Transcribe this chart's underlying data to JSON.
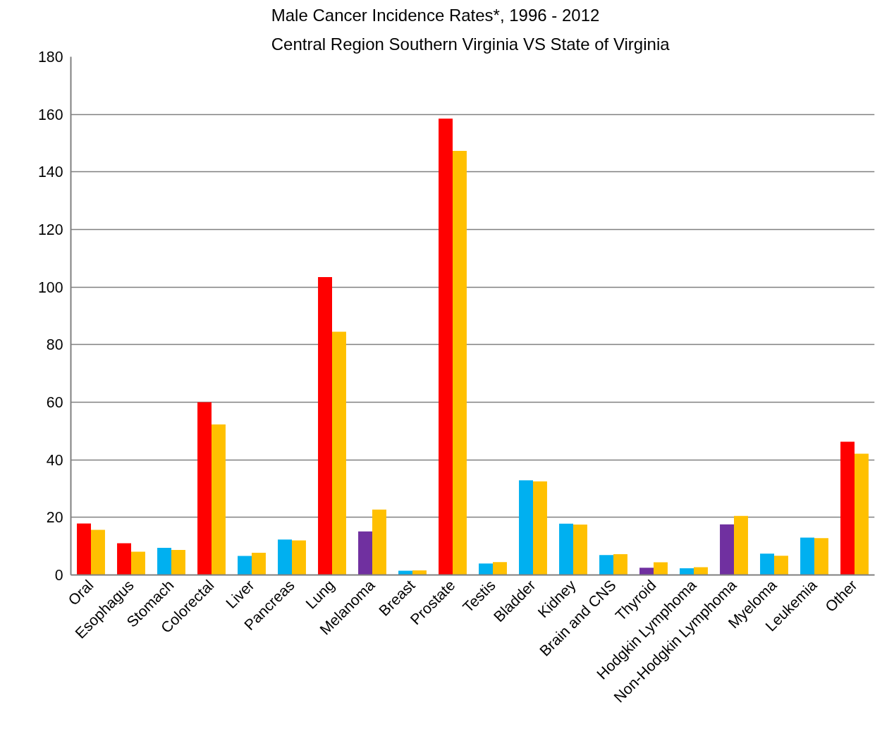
{
  "chart_data": {
    "type": "bar",
    "title": "Male Cancer Incidence Rates*, 1996 - 2012\nCentral Region Southern Virginia  VS State of Virginia",
    "categories": [
      "Oral",
      "Esophagus",
      "Stomach",
      "Colorectal",
      "Liver",
      "Pancreas",
      "Lung",
      "Melanoma",
      "Breast",
      "Prostate",
      "Testis",
      "Bladder",
      "Kidney",
      "Brain and CNS",
      "Thyroid",
      "Hodgkin Lymphoma",
      "Non-Hodgkin Lymphoma",
      "Myeloma",
      "Leukemia",
      "Other"
    ],
    "series": [
      {
        "colors": [
          "#ff0000",
          "#ff0000",
          "#00b0f0",
          "#ff0000",
          "#00b0f0",
          "#00b0f0",
          "#ff0000",
          "#7030a0",
          "#00b0f0",
          "#ff0000",
          "#00b0f0",
          "#00b0f0",
          "#00b0f0",
          "#00b0f0",
          "#7030a0",
          "#00b0f0",
          "#7030a0",
          "#00b0f0",
          "#00b0f0",
          "#ff0000"
        ],
        "values": [
          17.9,
          11.0,
          9.4,
          60.0,
          6.6,
          12.3,
          103.5,
          15.1,
          1.5,
          158.5,
          4.0,
          32.9,
          17.8,
          6.9,
          2.5,
          2.3,
          17.6,
          7.4,
          13.0,
          46.3
        ]
      },
      {
        "color": "#ffc000",
        "values": [
          15.7,
          8.1,
          8.7,
          52.3,
          7.7,
          12.0,
          84.5,
          22.7,
          1.6,
          147.3,
          4.5,
          32.5,
          17.5,
          7.2,
          4.4,
          2.7,
          20.5,
          6.7,
          12.8,
          42.1
        ]
      }
    ],
    "ylim": [
      0,
      180
    ],
    "yticks": [
      0,
      20,
      40,
      60,
      80,
      100,
      120,
      140,
      160,
      180
    ],
    "grid": "y"
  }
}
